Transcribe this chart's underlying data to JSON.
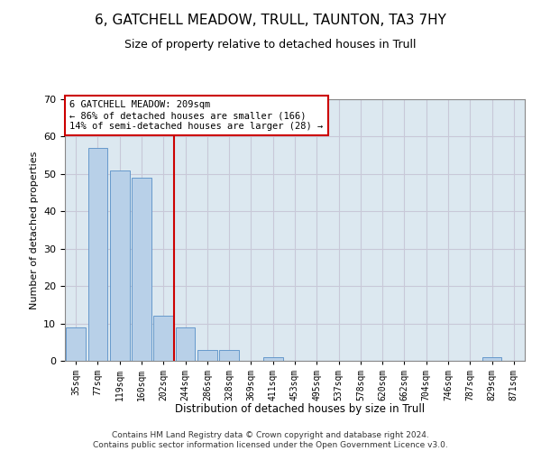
{
  "title": "6, GATCHELL MEADOW, TRULL, TAUNTON, TA3 7HY",
  "subtitle": "Size of property relative to detached houses in Trull",
  "xlabel": "Distribution of detached houses by size in Trull",
  "ylabel": "Number of detached properties",
  "categories": [
    "35sqm",
    "77sqm",
    "119sqm",
    "160sqm",
    "202sqm",
    "244sqm",
    "286sqm",
    "328sqm",
    "369sqm",
    "411sqm",
    "453sqm",
    "495sqm",
    "537sqm",
    "578sqm",
    "620sqm",
    "662sqm",
    "704sqm",
    "746sqm",
    "787sqm",
    "829sqm",
    "871sqm"
  ],
  "values": [
    9,
    57,
    51,
    49,
    12,
    9,
    3,
    3,
    0,
    1,
    0,
    0,
    0,
    0,
    0,
    0,
    0,
    0,
    0,
    1,
    0
  ],
  "bar_color": "#b8d0e8",
  "bar_edge_color": "#6699cc",
  "highlight_line_color": "#cc0000",
  "annotation_text": "6 GATCHELL MEADOW: 209sqm\n← 86% of detached houses are smaller (166)\n14% of semi-detached houses are larger (28) →",
  "annotation_box_color": "#ffffff",
  "annotation_box_edge_color": "#cc0000",
  "ylim": [
    0,
    70
  ],
  "yticks": [
    0,
    10,
    20,
    30,
    40,
    50,
    60,
    70
  ],
  "grid_color": "#c8c8d8",
  "bg_color": "#dce8f0",
  "footnote": "Contains HM Land Registry data © Crown copyright and database right 2024.\nContains public sector information licensed under the Open Government Licence v3.0.",
  "title_fontsize": 11,
  "subtitle_fontsize": 9,
  "footnote_fontsize": 6.5
}
